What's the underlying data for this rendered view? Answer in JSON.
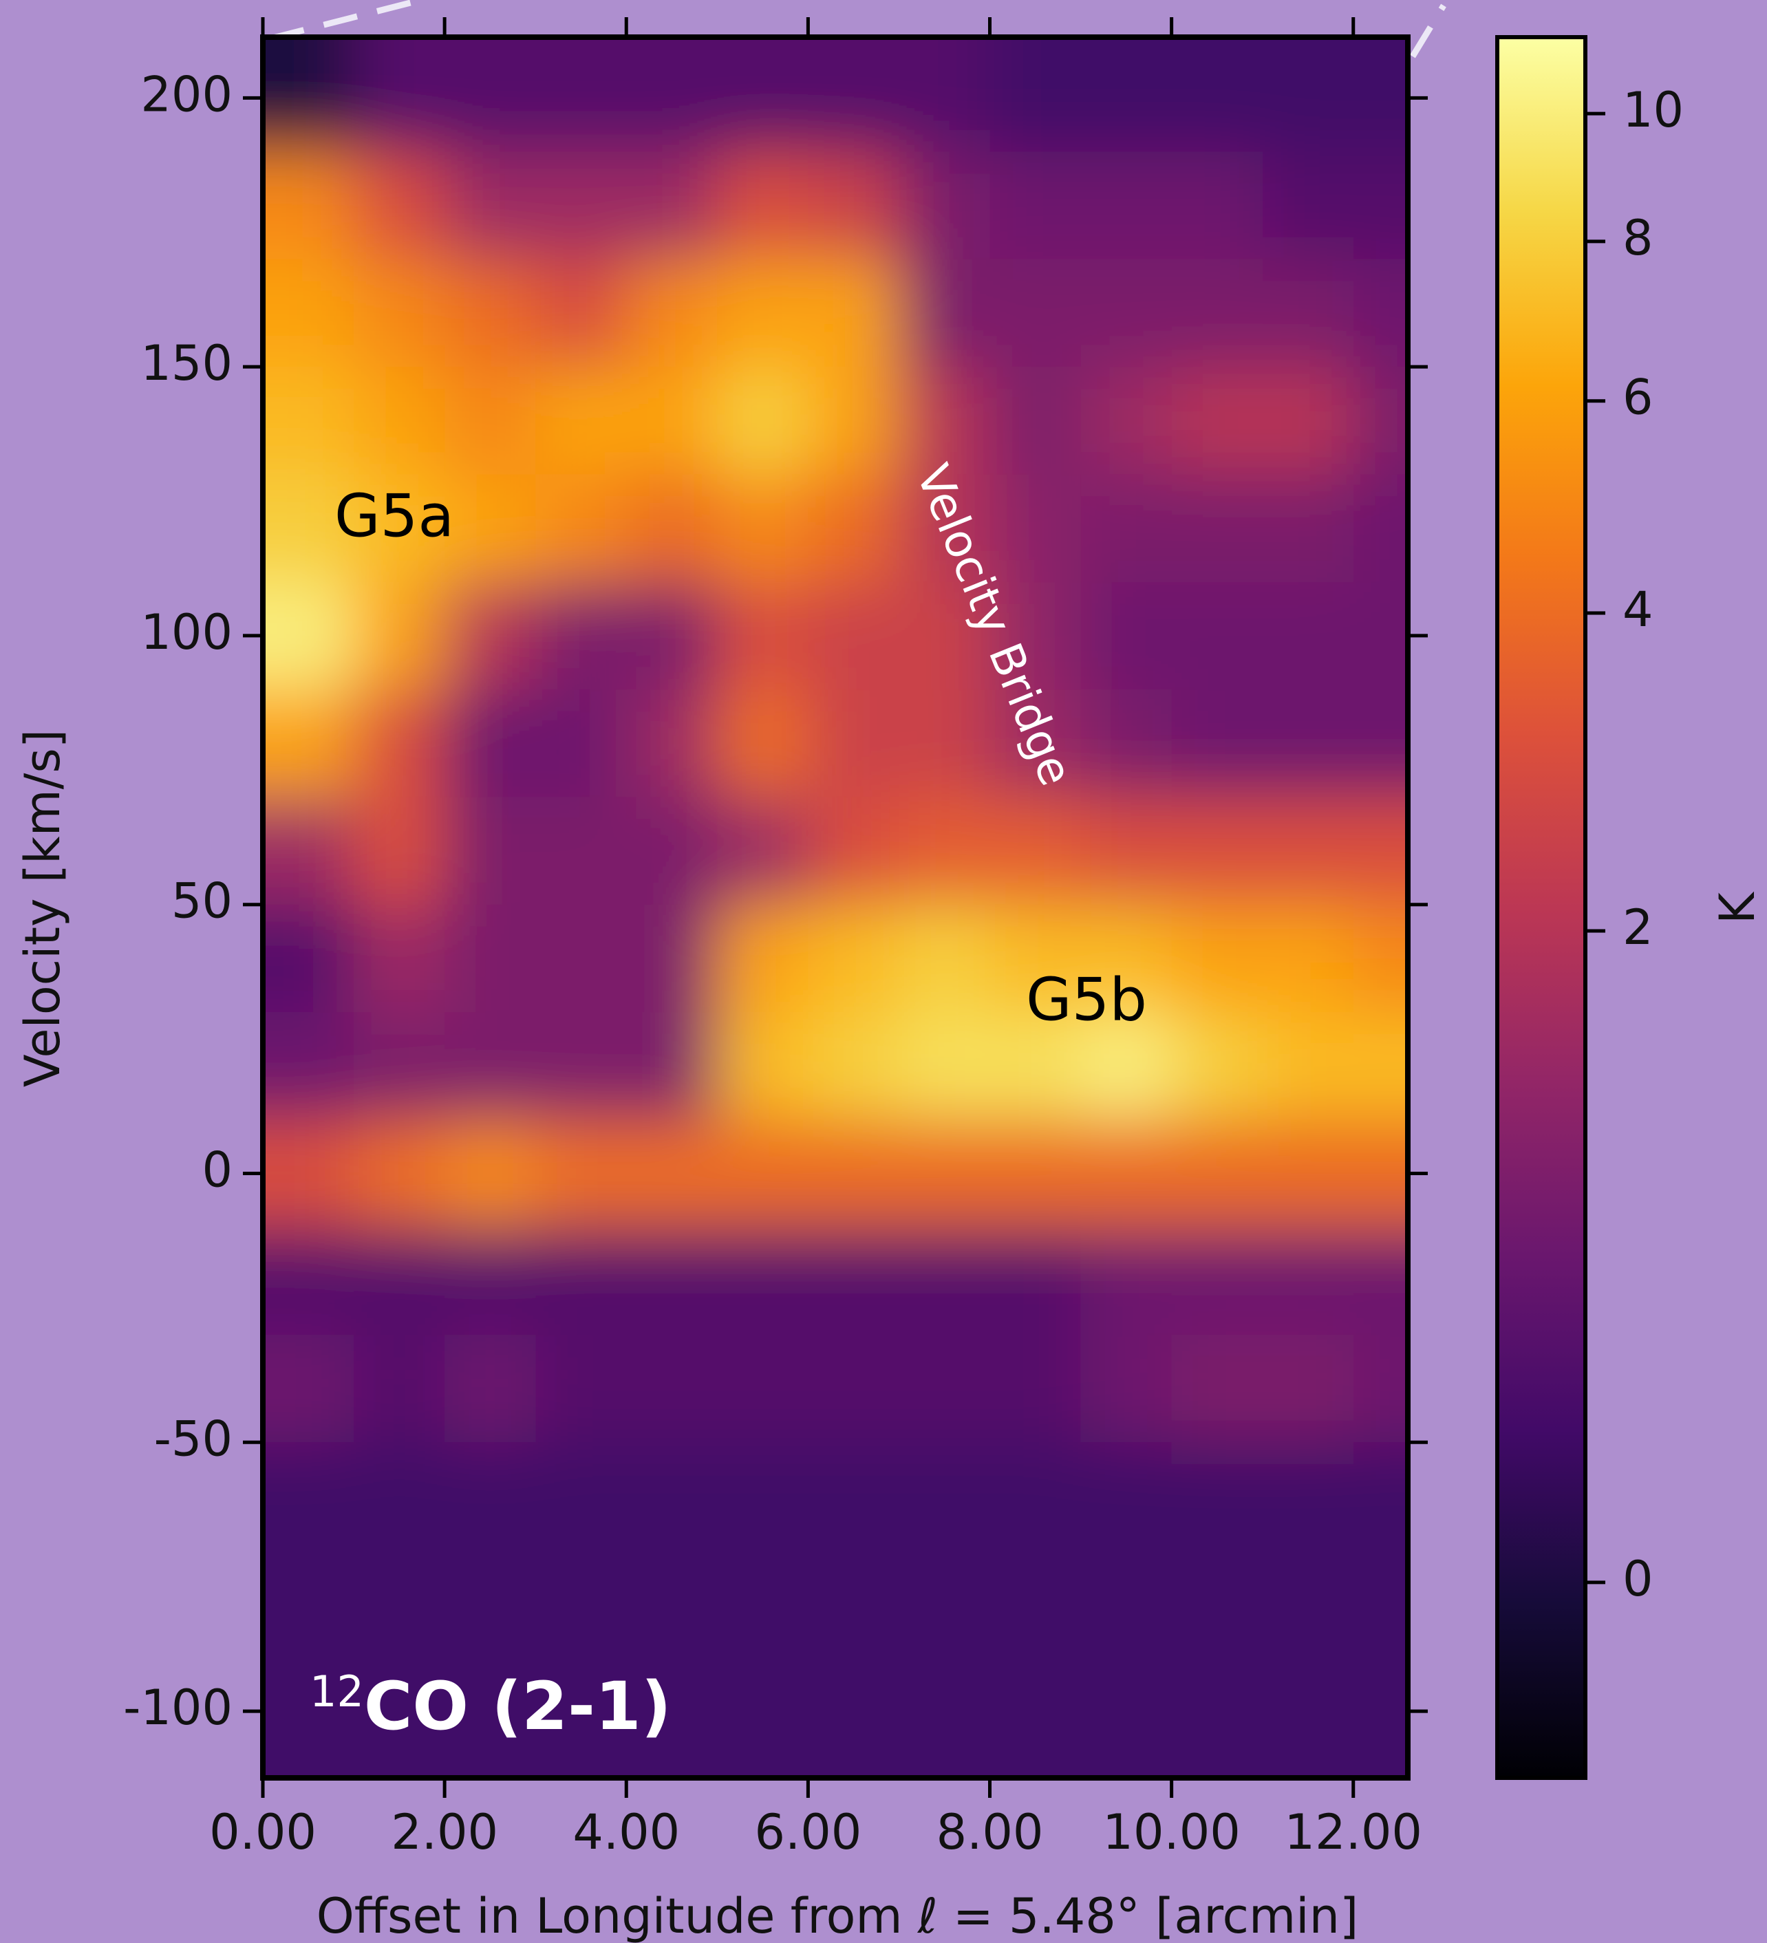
{
  "chart_data": {
    "type": "heatmap",
    "x_label": "Offset in Longitude from ℓ = 5.48° [arcmin]",
    "y_label": "Velocity [km/s]",
    "colormap": "inferno",
    "x": [
      0.5,
      1.5,
      2.5,
      3.5,
      4.5,
      5.5,
      6.5,
      7.5,
      8.5,
      9.5,
      10.5,
      11.5,
      12.5
    ],
    "y": [
      200,
      180,
      160,
      140,
      120,
      100,
      80,
      60,
      40,
      20,
      0,
      -20,
      -40,
      -60,
      -80,
      -100
    ],
    "z": [
      [
        0,
        0.5,
        0.5,
        0.5,
        0.5,
        0.5,
        0.5,
        0.5,
        0.3,
        0.3,
        0.3,
        0.3,
        0.3
      ],
      [
        5,
        3,
        1.5,
        1.5,
        1.5,
        3,
        2.5,
        1,
        0.8,
        0.8,
        0.8,
        0.5,
        0.5
      ],
      [
        6,
        5,
        4,
        3,
        5,
        6,
        6,
        1,
        1,
        1,
        1,
        1,
        0.8
      ],
      [
        7,
        6,
        5,
        6,
        6,
        8,
        6,
        2,
        1,
        1.5,
        2,
        2,
        1
      ],
      [
        8,
        7,
        6,
        5,
        4,
        5,
        4,
        2,
        1.2,
        1,
        1,
        1,
        0.8
      ],
      [
        10,
        6,
        2,
        1,
        1,
        3,
        2.5,
        2.5,
        1.3,
        0.8,
        0.8,
        0.8,
        0.8
      ],
      [
        6,
        3,
        0.8,
        0.8,
        1.5,
        4,
        2.5,
        2.5,
        1.5,
        1,
        0.8,
        0.8,
        0.8
      ],
      [
        1.5,
        3,
        1,
        1,
        1,
        1.5,
        3,
        3.5,
        3.5,
        3,
        3,
        3,
        3
      ],
      [
        0.5,
        1.5,
        1,
        1,
        1,
        6,
        7,
        8,
        7,
        7,
        6,
        6,
        5
      ],
      [
        0.8,
        1,
        1,
        1,
        1,
        7,
        8,
        9,
        9,
        10,
        8,
        7,
        7
      ],
      [
        3,
        4,
        5,
        4,
        4,
        4,
        4,
        4,
        4,
        4,
        4,
        4,
        4
      ],
      [
        0.5,
        0.5,
        0.5,
        0.5,
        0.5,
        0.5,
        0.5,
        0.5,
        0.5,
        0.8,
        0.8,
        0.8,
        0.8
      ],
      [
        0.8,
        0.5,
        0.8,
        0.5,
        0.5,
        0.5,
        0.5,
        0.5,
        0.5,
        0.8,
        1,
        1,
        0.8
      ],
      [
        0.3,
        0.3,
        0.3,
        0.3,
        0.3,
        0.3,
        0.3,
        0.3,
        0.3,
        0.3,
        0.3,
        0.3,
        0.3
      ],
      [
        0.3,
        0.3,
        0.3,
        0.3,
        0.3,
        0.3,
        0.3,
        0.3,
        0.3,
        0.3,
        0.3,
        0.3,
        0.3
      ],
      [
        0.3,
        0.3,
        0.3,
        0.3,
        0.3,
        0.3,
        0.3,
        0.3,
        0.3,
        0.3,
        0.3,
        0.3,
        0.3
      ]
    ],
    "xlim": [
      0,
      12.6
    ],
    "ylim": [
      -112.4,
      211.3
    ],
    "xticks": [
      {
        "value": 0,
        "label": "0.00"
      },
      {
        "value": 2,
        "label": "2.00"
      },
      {
        "value": 4,
        "label": "4.00"
      },
      {
        "value": 6,
        "label": "6.00"
      },
      {
        "value": 8,
        "label": "8.00"
      },
      {
        "value": 10,
        "label": "10.00"
      },
      {
        "value": 12,
        "label": "12.00"
      }
    ],
    "yticks": [
      -100,
      -50,
      0,
      50,
      100,
      150,
      200
    ],
    "colorbar": {
      "label": "K",
      "lim": [
        -0.3,
        11.4
      ],
      "ticks": [
        0,
        2,
        4,
        6,
        8,
        10
      ]
    },
    "annotations": [
      "G5a",
      "Velocity Bridge",
      "G5b"
    ],
    "tag": {
      "superscript": "12",
      "text": "CO (2-1)"
    }
  }
}
